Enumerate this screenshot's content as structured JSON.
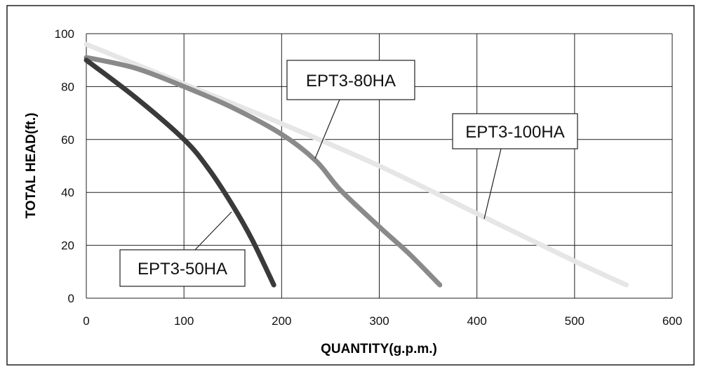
{
  "chart_data": {
    "type": "line",
    "title": "",
    "xlabel": "QUANTITY(g.p.m.)",
    "ylabel": "TOTAL HEAD(ft.)",
    "xlim": [
      0,
      600
    ],
    "ylim": [
      0,
      100
    ],
    "x_ticks": [
      0,
      100,
      200,
      300,
      400,
      500,
      600
    ],
    "y_ticks": [
      0,
      20,
      40,
      60,
      80,
      100
    ],
    "grid": true,
    "legend": "callout labels",
    "series": [
      {
        "name": "EPT3-50HA",
        "color": "#3a3a3a",
        "x": [
          0,
          50,
          100,
          125,
          150,
          170,
          192
        ],
        "y": [
          90,
          76,
          60,
          49,
          35,
          22,
          5
        ]
      },
      {
        "name": "EPT3-80HA",
        "color": "#8a8a8a",
        "x": [
          0,
          50,
          100,
          150,
          200,
          235,
          260,
          300,
          330,
          362
        ],
        "y": [
          91,
          87,
          80,
          72,
          62,
          52,
          41,
          27,
          17,
          5
        ]
      },
      {
        "name": "EPT3-100HA",
        "color": "#e6e6e6",
        "x": [
          0,
          100,
          200,
          300,
          400,
          500,
          553
        ],
        "y": [
          96,
          81,
          66,
          50,
          32,
          14,
          5
        ]
      }
    ]
  }
}
